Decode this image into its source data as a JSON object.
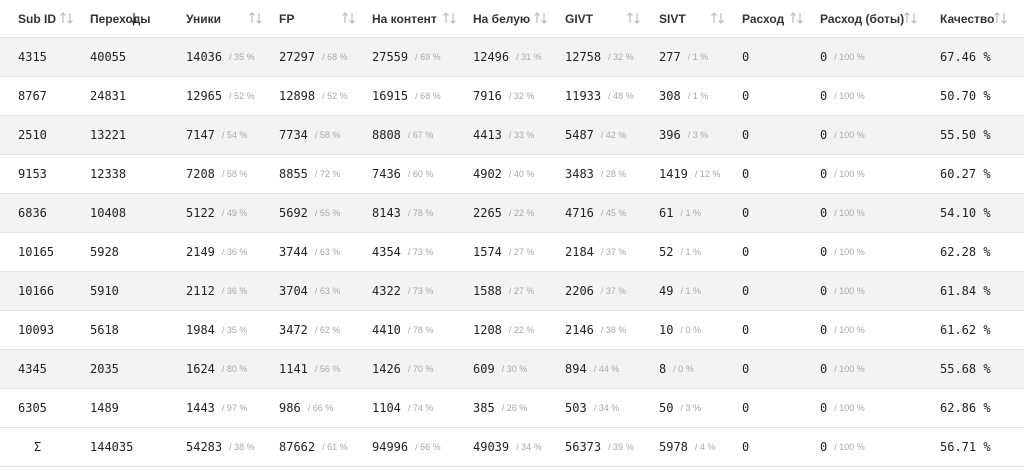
{
  "table": {
    "headers": [
      "Sub ID",
      "Переходы",
      "Уники",
      "FP",
      "На контент",
      "На белую",
      "GIVT",
      "SIVT",
      "Расход",
      "Расход (боты)",
      "Качество"
    ],
    "rows": [
      [
        [
          "4315"
        ],
        [
          "40055"
        ],
        [
          "14036",
          "/ 35 %"
        ],
        [
          "27297",
          "/ 68 %"
        ],
        [
          "27559",
          "/ 69 %"
        ],
        [
          "12496",
          "/ 31 %"
        ],
        [
          "12758",
          "/ 32 %"
        ],
        [
          "277",
          "/ 1 %"
        ],
        [
          "0"
        ],
        [
          "0",
          "/ 100 %"
        ],
        [
          "67.46 %"
        ]
      ],
      [
        [
          "8767"
        ],
        [
          "24831"
        ],
        [
          "12965",
          "/ 52 %"
        ],
        [
          "12898",
          "/ 52 %"
        ],
        [
          "16915",
          "/ 68 %"
        ],
        [
          "7916",
          "/ 32 %"
        ],
        [
          "11933",
          "/ 48 %"
        ],
        [
          "308",
          "/ 1 %"
        ],
        [
          "0"
        ],
        [
          "0",
          "/ 100 %"
        ],
        [
          "50.70 %"
        ]
      ],
      [
        [
          "2510"
        ],
        [
          "13221"
        ],
        [
          "7147",
          "/ 54 %"
        ],
        [
          "7734",
          "/ 58 %"
        ],
        [
          "8808",
          "/ 67 %"
        ],
        [
          "4413",
          "/ 33 %"
        ],
        [
          "5487",
          "/ 42 %"
        ],
        [
          "396",
          "/ 3 %"
        ],
        [
          "0"
        ],
        [
          "0",
          "/ 100 %"
        ],
        [
          "55.50 %"
        ]
      ],
      [
        [
          "9153"
        ],
        [
          "12338"
        ],
        [
          "7208",
          "/ 58 %"
        ],
        [
          "8855",
          "/ 72 %"
        ],
        [
          "7436",
          "/ 60 %"
        ],
        [
          "4902",
          "/ 40 %"
        ],
        [
          "3483",
          "/ 28 %"
        ],
        [
          "1419",
          "/ 12 %"
        ],
        [
          "0"
        ],
        [
          "0",
          "/ 100 %"
        ],
        [
          "60.27 %"
        ]
      ],
      [
        [
          "6836"
        ],
        [
          "10408"
        ],
        [
          "5122",
          "/ 49 %"
        ],
        [
          "5692",
          "/ 55 %"
        ],
        [
          "8143",
          "/ 78 %"
        ],
        [
          "2265",
          "/ 22 %"
        ],
        [
          "4716",
          "/ 45 %"
        ],
        [
          "61",
          "/ 1 %"
        ],
        [
          "0"
        ],
        [
          "0",
          "/ 100 %"
        ],
        [
          "54.10 %"
        ]
      ],
      [
        [
          "10165"
        ],
        [
          "5928"
        ],
        [
          "2149",
          "/ 36 %"
        ],
        [
          "3744",
          "/ 63 %"
        ],
        [
          "4354",
          "/ 73 %"
        ],
        [
          "1574",
          "/ 27 %"
        ],
        [
          "2184",
          "/ 37 %"
        ],
        [
          "52",
          "/ 1 %"
        ],
        [
          "0"
        ],
        [
          "0",
          "/ 100 %"
        ],
        [
          "62.28 %"
        ]
      ],
      [
        [
          "10166"
        ],
        [
          "5910"
        ],
        [
          "2112",
          "/ 36 %"
        ],
        [
          "3704",
          "/ 63 %"
        ],
        [
          "4322",
          "/ 73 %"
        ],
        [
          "1588",
          "/ 27 %"
        ],
        [
          "2206",
          "/ 37 %"
        ],
        [
          "49",
          "/ 1 %"
        ],
        [
          "0"
        ],
        [
          "0",
          "/ 100 %"
        ],
        [
          "61.84 %"
        ]
      ],
      [
        [
          "10093"
        ],
        [
          "5618"
        ],
        [
          "1984",
          "/ 35 %"
        ],
        [
          "3472",
          "/ 62 %"
        ],
        [
          "4410",
          "/ 78 %"
        ],
        [
          "1208",
          "/ 22 %"
        ],
        [
          "2146",
          "/ 38 %"
        ],
        [
          "10",
          "/ 0 %"
        ],
        [
          "0"
        ],
        [
          "0",
          "/ 100 %"
        ],
        [
          "61.62 %"
        ]
      ],
      [
        [
          "4345"
        ],
        [
          "2035"
        ],
        [
          "1624",
          "/ 80 %"
        ],
        [
          "1141",
          "/ 56 %"
        ],
        [
          "1426",
          "/ 70 %"
        ],
        [
          "609",
          "/ 30 %"
        ],
        [
          "894",
          "/ 44 %"
        ],
        [
          "8",
          "/ 0 %"
        ],
        [
          "0"
        ],
        [
          "0",
          "/ 100 %"
        ],
        [
          "55.68 %"
        ]
      ],
      [
        [
          "6305"
        ],
        [
          "1489"
        ],
        [
          "1443",
          "/ 97 %"
        ],
        [
          "986",
          "/ 66 %"
        ],
        [
          "1104",
          "/ 74 %"
        ],
        [
          "385",
          "/ 26 %"
        ],
        [
          "503",
          "/ 34 %"
        ],
        [
          "50",
          "/ 3 %"
        ],
        [
          "0"
        ],
        [
          "0",
          "/ 100 %"
        ],
        [
          "62.86 %"
        ]
      ]
    ],
    "total": [
      [
        "Σ"
      ],
      [
        "144035"
      ],
      [
        "54283",
        "/ 38 %"
      ],
      [
        "87662",
        "/ 61 %"
      ],
      [
        "94996",
        "/ 66 %"
      ],
      [
        "49039",
        "/ 34 %"
      ],
      [
        "56373",
        "/ 39 %"
      ],
      [
        "5978",
        "/ 4 %"
      ],
      [
        "0"
      ],
      [
        "0",
        "/ 100 %"
      ],
      [
        "56.71 %"
      ]
    ]
  }
}
